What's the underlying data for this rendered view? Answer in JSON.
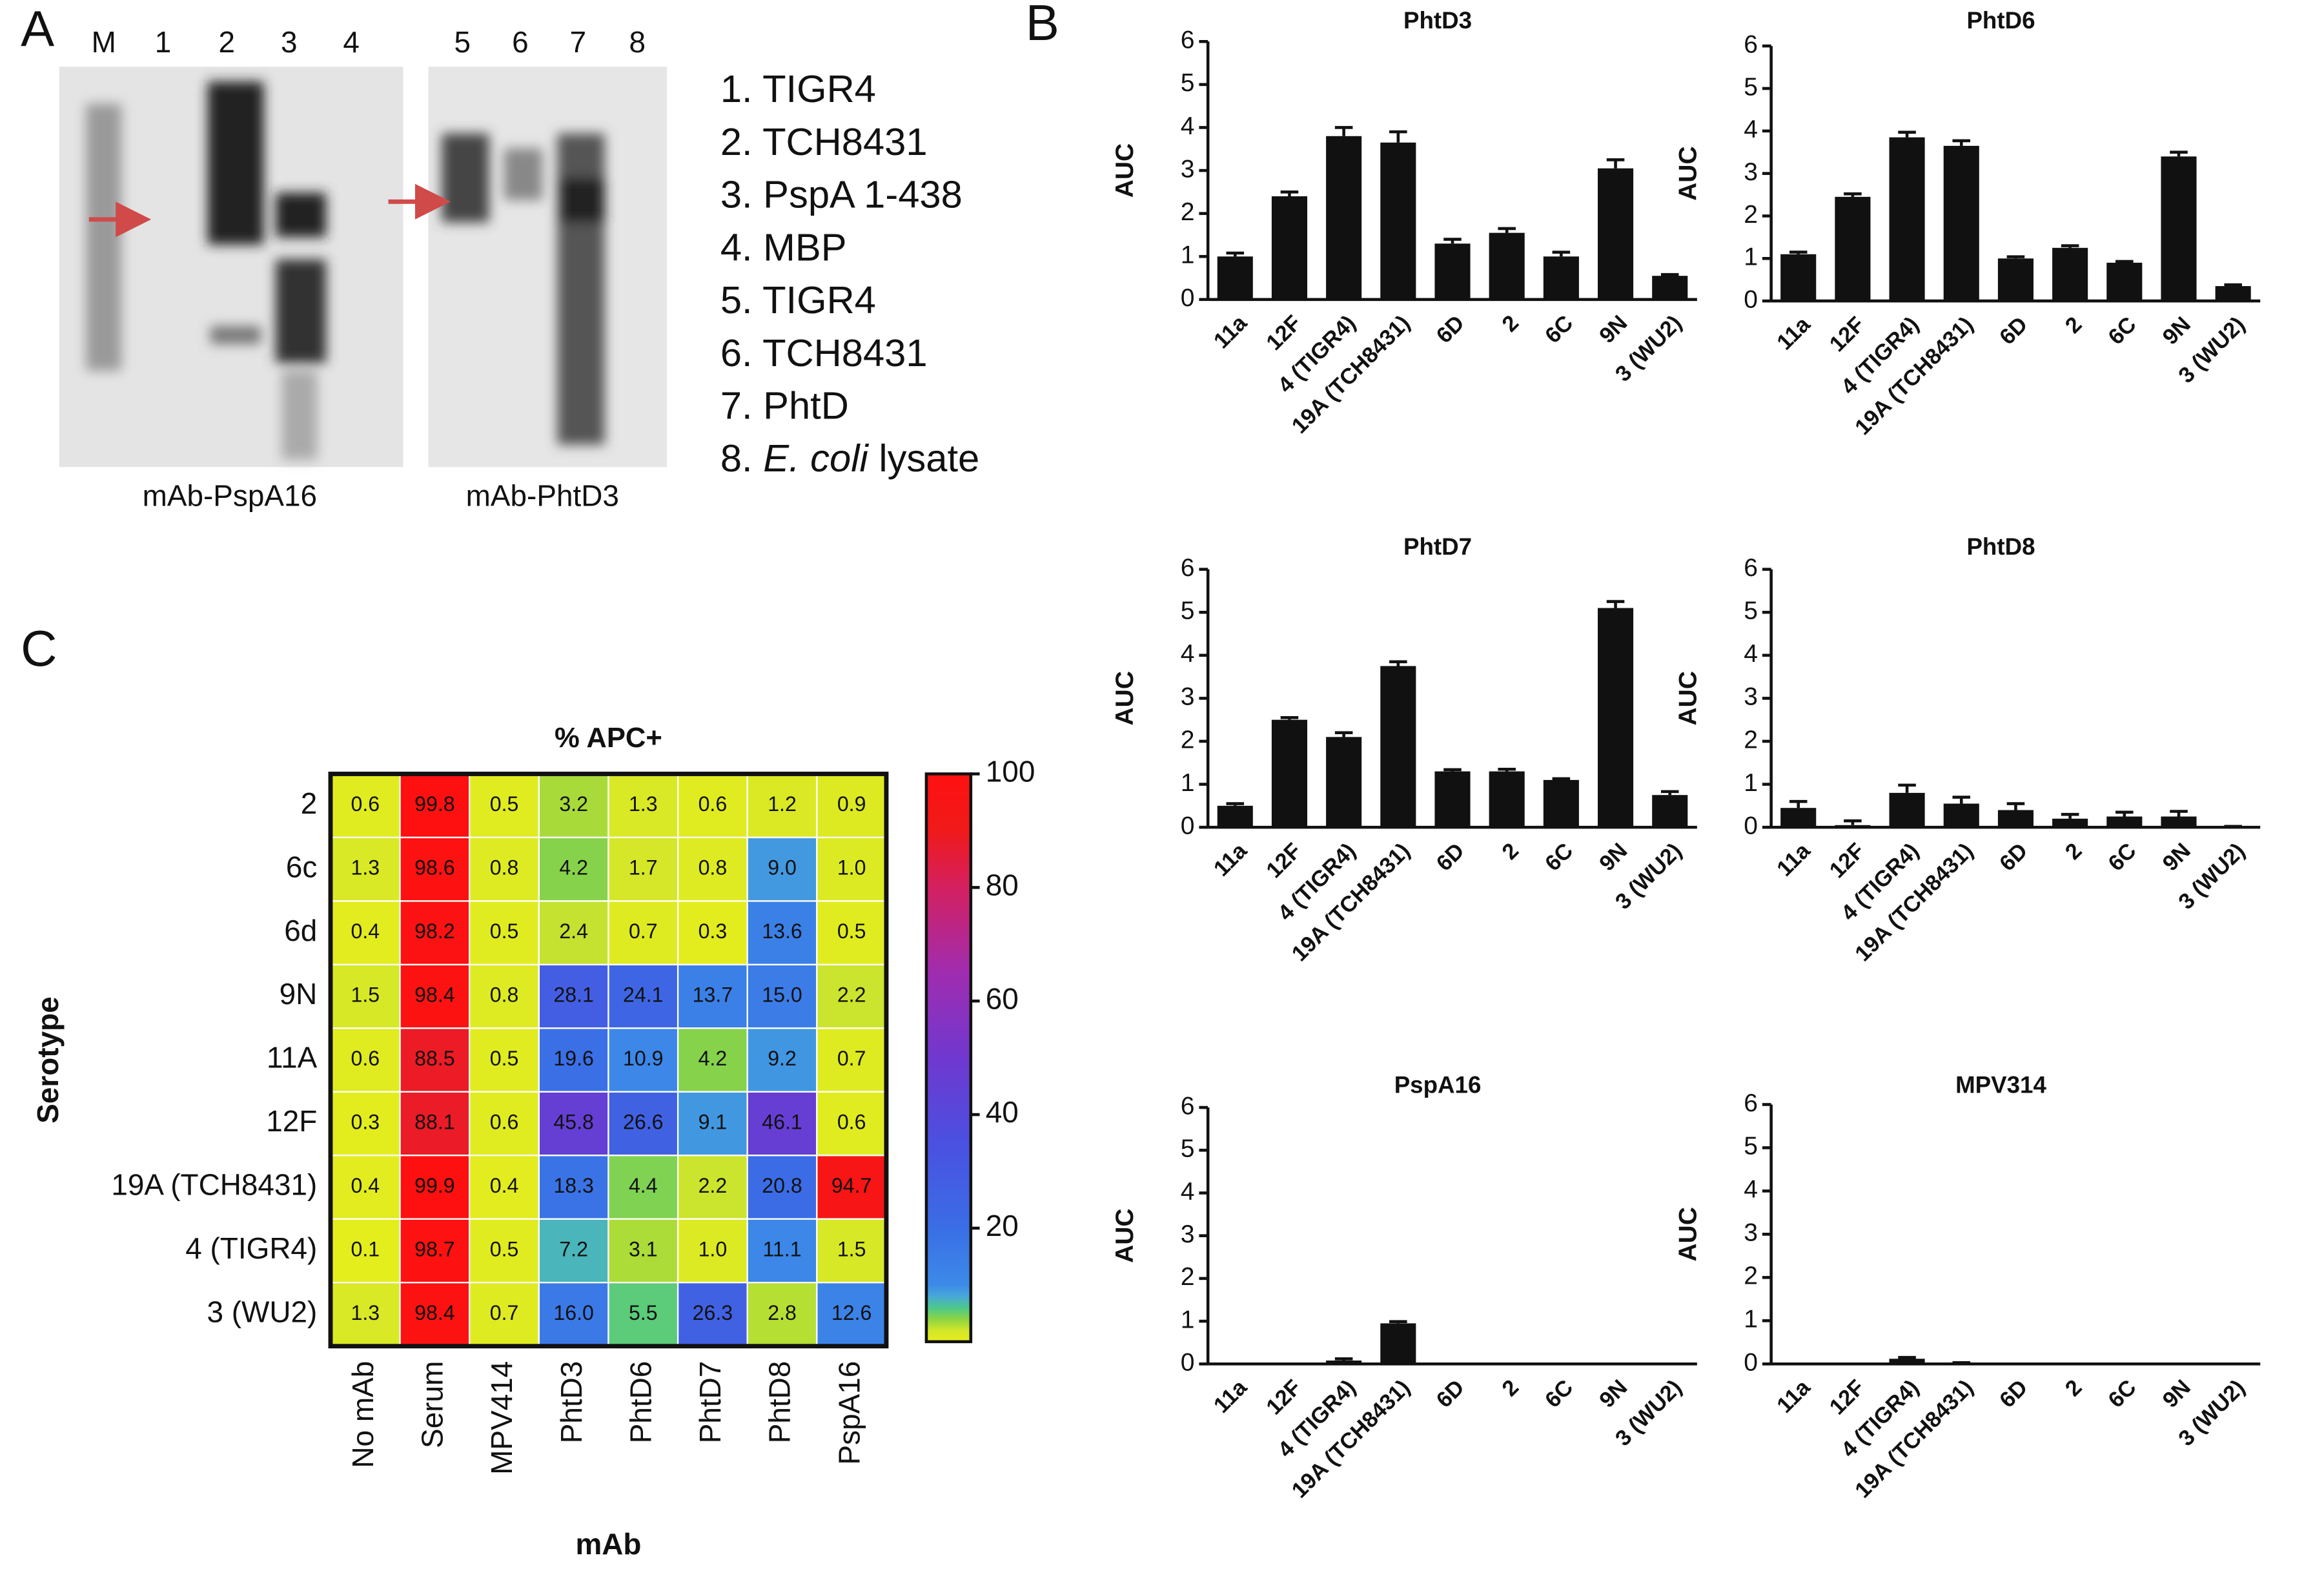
{
  "panels": {
    "a": "A",
    "b": "B",
    "c": "C"
  },
  "blot": {
    "lanes_left": [
      "M",
      "1",
      "2",
      "3",
      "4"
    ],
    "lanes_right": [
      "5",
      "6",
      "7",
      "8"
    ],
    "captions": [
      "mAb-PspA16",
      "mAb-PhtD3"
    ],
    "legend": [
      "1. TIGR4",
      "2. TCH8431",
      "3. PspA 1-438",
      "4. MBP",
      "5. TIGR4",
      "6. TCH8431",
      "7. PhtD"
    ],
    "legend_last": {
      "prefix": "8.",
      "italic": "E. coli",
      "suffix": "lysate"
    }
  },
  "chart_data": [
    {
      "type": "bar",
      "title": "PhtD3",
      "y_label": "AUC",
      "categories": [
        "11a",
        "12F",
        "4 (TIGR4)",
        "19A (TCH8431)",
        "6D",
        "2",
        "6C",
        "9N",
        "3 (WU2)"
      ],
      "values": [
        1.0,
        2.4,
        3.8,
        3.65,
        1.3,
        1.55,
        1.0,
        3.05,
        0.55
      ],
      "errors": [
        0.08,
        0.1,
        0.2,
        0.25,
        0.1,
        0.1,
        0.1,
        0.2,
        0.03
      ],
      "color": "#111111",
      "ylim": [
        0,
        6
      ],
      "yticks": [
        0,
        1,
        2,
        3,
        4,
        5,
        6
      ]
    },
    {
      "type": "bar",
      "title": "PhtD6",
      "y_label": "AUC",
      "categories": [
        "11a",
        "12F",
        "4 (TIGR4)",
        "19A (TCH8431)",
        "6D",
        "2",
        "6C",
        "9N",
        "3 (WU2)"
      ],
      "values": [
        1.1,
        2.45,
        3.85,
        3.65,
        1.0,
        1.25,
        0.9,
        3.4,
        0.35
      ],
      "errors": [
        0.05,
        0.07,
        0.12,
        0.12,
        0.04,
        0.05,
        0.03,
        0.1,
        0.03
      ],
      "color": "#111111",
      "ylim": [
        0,
        6
      ],
      "yticks": [
        0,
        1,
        2,
        3,
        4,
        5,
        6
      ]
    },
    {
      "type": "bar",
      "title": "PhtD7",
      "y_label": "AUC",
      "categories": [
        "11a",
        "12F",
        "4 (TIGR4)",
        "19A (TCH8431)",
        "6D",
        "2",
        "6C",
        "9N",
        "3 (WU2)"
      ],
      "values": [
        0.5,
        2.5,
        2.1,
        3.75,
        1.3,
        1.3,
        1.1,
        5.1,
        0.75
      ],
      "errors": [
        0.05,
        0.05,
        0.1,
        0.1,
        0.04,
        0.05,
        0.03,
        0.15,
        0.08
      ],
      "color": "#111111",
      "ylim": [
        0,
        6
      ],
      "yticks": [
        0,
        1,
        2,
        3,
        4,
        5,
        6
      ]
    },
    {
      "type": "bar",
      "title": "PhtD8",
      "y_label": "AUC",
      "categories": [
        "11a",
        "12F",
        "4 (TIGR4)",
        "19A (TCH8431)",
        "6D",
        "2",
        "6C",
        "9N",
        "3 (WU2)"
      ],
      "values": [
        0.45,
        0.05,
        0.8,
        0.55,
        0.4,
        0.2,
        0.25,
        0.25,
        0.0
      ],
      "errors": [
        0.15,
        0.1,
        0.18,
        0.15,
        0.15,
        0.1,
        0.1,
        0.12,
        0.02
      ],
      "color": "#111111",
      "ylim": [
        0,
        6
      ],
      "yticks": [
        0,
        1,
        2,
        3,
        4,
        5,
        6
      ]
    },
    {
      "type": "bar",
      "title": "PspA16",
      "y_label": "AUC",
      "categories": [
        "11a",
        "12F",
        "4 (TIGR4)",
        "19A (TCH8431)",
        "6D",
        "2",
        "6C",
        "9N",
        "3 (WU2)"
      ],
      "values": [
        0,
        0,
        0.08,
        0.95,
        0,
        0,
        0,
        0,
        0
      ],
      "errors": [
        0,
        0,
        0.04,
        0.04,
        0,
        0,
        0,
        0,
        0
      ],
      "color": "#111111",
      "ylim": [
        0,
        6
      ],
      "yticks": [
        0,
        1,
        2,
        3,
        4,
        5,
        6
      ]
    },
    {
      "type": "bar",
      "title": "MPV314",
      "y_label": "AUC",
      "categories": [
        "11a",
        "12F",
        "4 (TIGR4)",
        "19A (TCH8431)",
        "6D",
        "2",
        "6C",
        "9N",
        "3 (WU2)"
      ],
      "values": [
        0,
        0,
        0.12,
        0.02,
        0,
        0,
        0,
        0,
        0
      ],
      "errors": [
        0,
        0,
        0.03,
        0.01,
        0,
        0,
        0,
        0,
        0
      ],
      "color": "#111111",
      "ylim": [
        0,
        6
      ],
      "yticks": [
        0,
        1,
        2,
        3,
        4,
        5,
        6
      ]
    },
    {
      "type": "heatmap",
      "title": "% APC+",
      "x_label": "mAb",
      "y_label": "Serotype",
      "columns": [
        "No mAb",
        "Serum",
        "MPV414",
        "PhtD3",
        "PhtD6",
        "PhtD7",
        "PhtD8",
        "PspA16"
      ],
      "rows": [
        "2",
        "6c",
        "6d",
        "9N",
        "11A",
        "12F",
        "19A (TCH8431)",
        "4 (TIGR4)",
        "3 (WU2)"
      ],
      "values": [
        [
          0.6,
          99.8,
          0.5,
          3.2,
          1.3,
          0.6,
          1.2,
          0.9
        ],
        [
          1.3,
          98.6,
          0.8,
          4.2,
          1.7,
          0.8,
          9.0,
          1.0
        ],
        [
          0.4,
          98.2,
          0.5,
          2.4,
          0.7,
          0.3,
          13.6,
          0.5
        ],
        [
          1.5,
          98.4,
          0.8,
          28.1,
          24.1,
          13.7,
          15.0,
          2.2
        ],
        [
          0.6,
          88.5,
          0.5,
          19.6,
          10.9,
          4.2,
          9.2,
          0.7
        ],
        [
          0.3,
          88.1,
          0.6,
          45.8,
          26.6,
          9.1,
          46.1,
          0.6
        ],
        [
          0.4,
          99.9,
          0.4,
          18.3,
          4.4,
          2.2,
          20.8,
          94.7
        ],
        [
          0.1,
          98.7,
          0.5,
          7.2,
          3.1,
          1.0,
          11.1,
          1.5
        ],
        [
          1.3,
          98.4,
          0.7,
          16.0,
          5.5,
          26.3,
          2.8,
          12.6
        ]
      ],
      "value_labels": [
        [
          "0.6",
          "99.8",
          "0.5",
          "3.2",
          "1.3",
          "0.6",
          "1.2",
          "0.9"
        ],
        [
          "1.3",
          "98.6",
          "0.8",
          "4.2",
          "1.7",
          "0.8",
          "9.0",
          "1.0"
        ],
        [
          "0.4",
          "98.2",
          "0.5",
          "2.4",
          "0.7",
          "0.3",
          "13.6",
          "0.5"
        ],
        [
          "1.5",
          "98.4",
          "0.8",
          "28.1",
          "24.1",
          "13.7",
          "15.0",
          "2.2"
        ],
        [
          "0.6",
          "88.5",
          "0.5",
          "19.6",
          "10.9",
          "4.2",
          "9.2",
          "0.7"
        ],
        [
          "0.3",
          "88.1",
          "0.6",
          "45.8",
          "26.6",
          "9.1",
          "46.1",
          "0.6"
        ],
        [
          "0.4",
          "99.9",
          "0.4",
          "18.3",
          "4.4",
          "2.2",
          "20.8",
          "94.7"
        ],
        [
          "0.1",
          "98.7",
          "0.5",
          "7.2",
          "3.1",
          "1.0",
          "11.1",
          "1.5"
        ],
        [
          "1.3",
          "98.4",
          "0.7",
          "16.0",
          "5.5",
          "26.3",
          "2.8",
          "12.6"
        ]
      ],
      "clim": [
        0,
        100
      ],
      "cticks": [
        20,
        40,
        60,
        80,
        100
      ],
      "colorscale": [
        [
          0,
          "#e6ee1c"
        ],
        [
          2,
          "#d2e62a"
        ],
        [
          4,
          "#8cd444"
        ],
        [
          6,
          "#4cc88c"
        ],
        [
          8,
          "#48a8d8"
        ],
        [
          10,
          "#3c8ae8"
        ],
        [
          20,
          "#3a6ee6"
        ],
        [
          35,
          "#4a50e0"
        ],
        [
          50,
          "#7038d0"
        ],
        [
          65,
          "#a02cb0"
        ],
        [
          80,
          "#d42060"
        ],
        [
          90,
          "#f01a1a"
        ],
        [
          100,
          "#ff1010"
        ]
      ]
    }
  ]
}
